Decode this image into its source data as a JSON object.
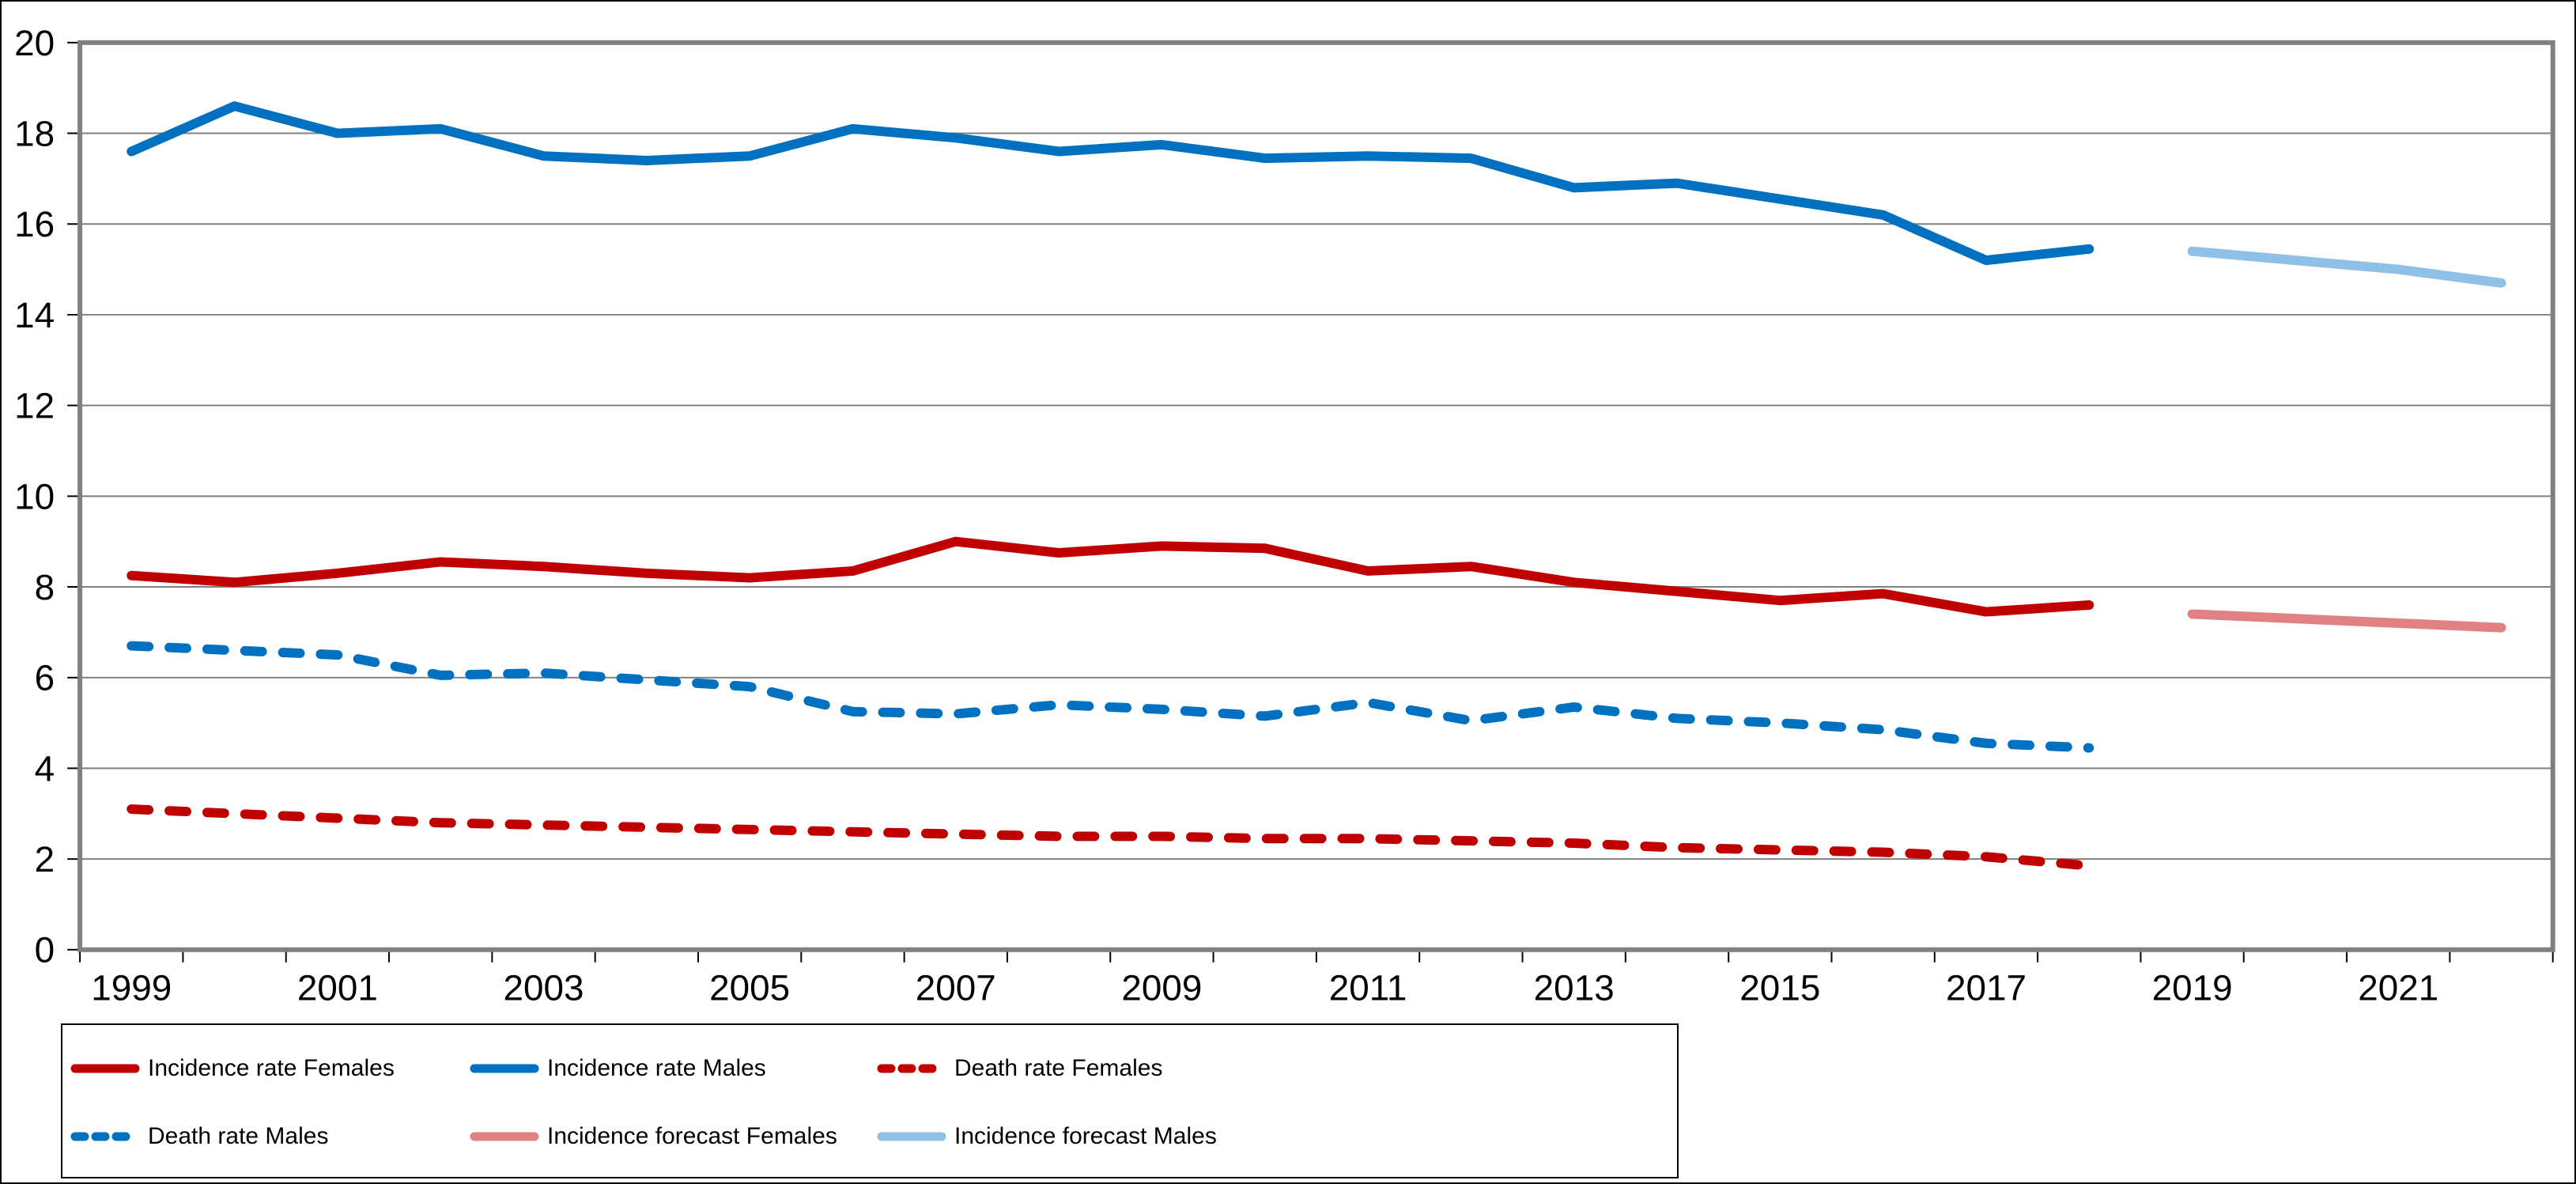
{
  "chart_data": {
    "type": "line",
    "title": "",
    "xlabel": "",
    "ylabel": "",
    "x": [
      1999,
      2000,
      2001,
      2002,
      2003,
      2004,
      2005,
      2006,
      2007,
      2008,
      2009,
      2010,
      2011,
      2012,
      2013,
      2014,
      2015,
      2016,
      2017,
      2018,
      2019,
      2020,
      2021,
      2022
    ],
    "x_tick_labels": [
      "1999",
      "2001",
      "2003",
      "2005",
      "2007",
      "2009",
      "2011",
      "2013",
      "2015",
      "2017",
      "2019",
      "2021"
    ],
    "y_tick_labels": [
      "0",
      "2",
      "4",
      "6",
      "8",
      "10",
      "12",
      "14",
      "16",
      "18",
      "20"
    ],
    "ylim": [
      0,
      20
    ],
    "y_tick_step": 2,
    "grid": "horizontal",
    "legend_position": "bottom-left",
    "series": [
      {
        "name": "Incidence rate Females",
        "color": "#C00000",
        "style": "solid",
        "start_year": 1999,
        "values": [
          8.25,
          8.1,
          8.3,
          8.55,
          8.45,
          8.3,
          8.2,
          8.35,
          9.0,
          8.75,
          8.9,
          8.85,
          8.35,
          8.45,
          8.1,
          7.9,
          7.7,
          7.85,
          7.45,
          7.6
        ]
      },
      {
        "name": "Incidence rate Males",
        "color": "#0070C0",
        "style": "solid",
        "start_year": 1999,
        "values": [
          17.6,
          18.6,
          18.0,
          18.1,
          17.5,
          17.4,
          17.5,
          18.1,
          17.9,
          17.6,
          17.75,
          17.45,
          17.5,
          17.45,
          16.8,
          16.9,
          16.55,
          16.2,
          15.2,
          15.45
        ]
      },
      {
        "name": "Death rate Females",
        "color": "#C00000",
        "style": "dashed",
        "start_year": 1999,
        "values": [
          3.1,
          3.0,
          2.9,
          2.8,
          2.75,
          2.7,
          2.65,
          2.6,
          2.55,
          2.5,
          2.5,
          2.45,
          2.45,
          2.4,
          2.35,
          2.25,
          2.2,
          2.15,
          2.05,
          1.85
        ]
      },
      {
        "name": "Death rate Males",
        "color": "#0070C0",
        "style": "dashed",
        "start_year": 1999,
        "values": [
          6.7,
          6.6,
          6.5,
          6.05,
          6.1,
          5.95,
          5.8,
          5.25,
          5.2,
          5.4,
          5.3,
          5.15,
          5.45,
          5.05,
          5.35,
          5.1,
          5.0,
          4.85,
          4.55,
          4.45
        ]
      },
      {
        "name": "Incidence forecast Females",
        "color": "#E08183",
        "style": "solid",
        "start_year": 2019,
        "values": [
          7.4,
          7.3,
          7.2,
          7.1
        ]
      },
      {
        "name": "Incidence forecast Males",
        "color": "#8FC1E7",
        "style": "solid",
        "start_year": 2019,
        "values": [
          15.4,
          15.2,
          15.0,
          14.7
        ]
      }
    ]
  },
  "styles": {
    "gridline_color": "#808080",
    "plot_border_color": "#808080",
    "tick_color": "#000000",
    "text_color": "#000000",
    "background": "#FFFFFF",
    "outer_border_color": "#000000"
  }
}
